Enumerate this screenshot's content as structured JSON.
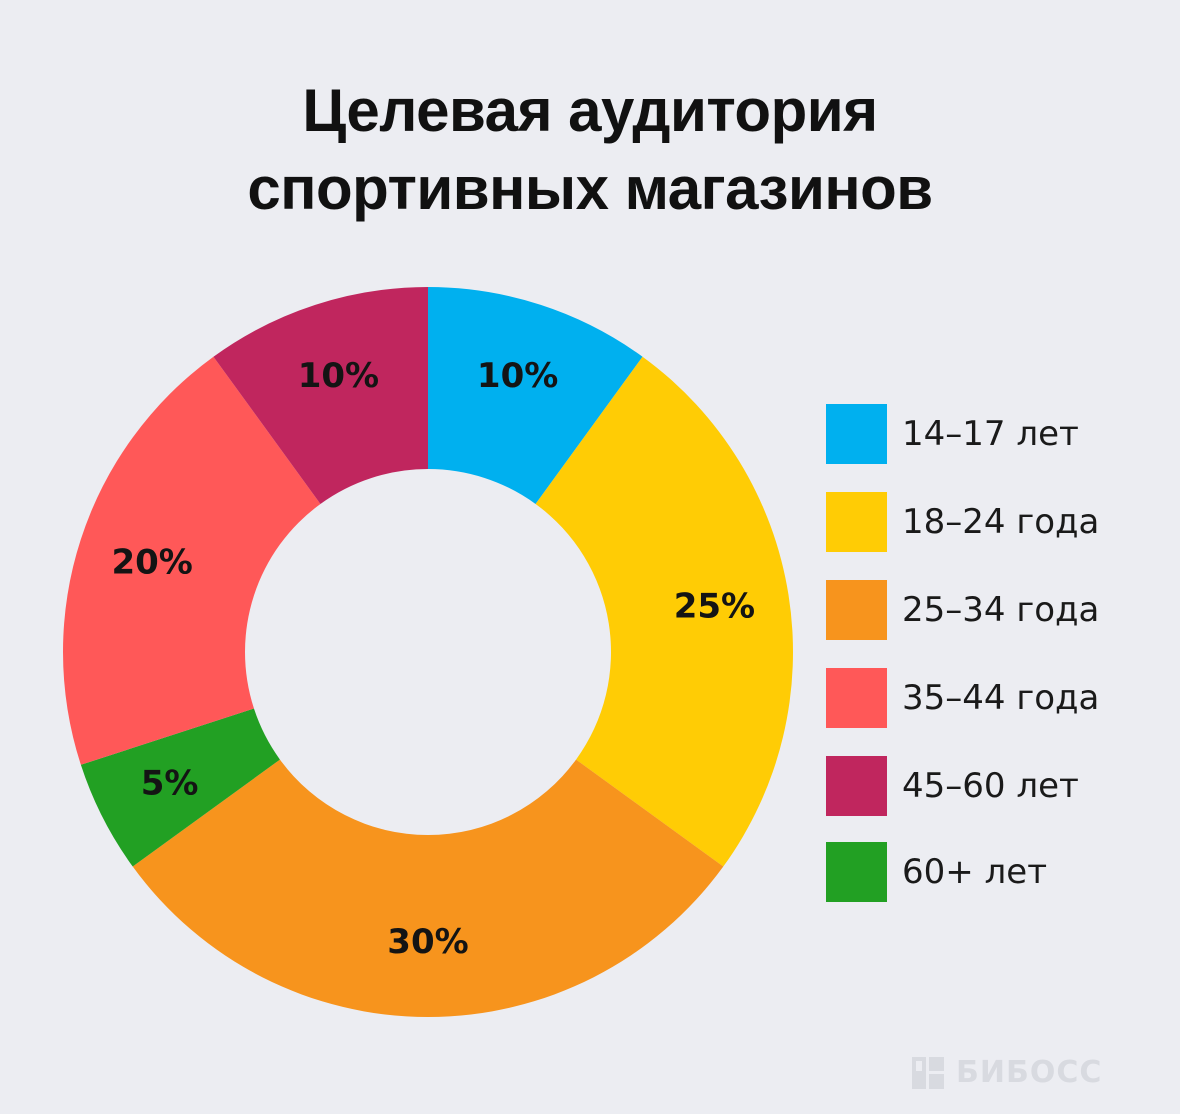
{
  "title_lines": [
    "Целевая аудитория",
    "спортивных магазинов"
  ],
  "chart_data": {
    "type": "pie",
    "variant": "donut",
    "title": "Целевая аудитория спортивных магазинов",
    "unit": "%",
    "slices": [
      {
        "name": "14–17 лет",
        "value": 10,
        "label": "10%",
        "color": "#00B0EF"
      },
      {
        "name": "18–24 года",
        "value": 25,
        "label": "25%",
        "color": "#FFCC05"
      },
      {
        "name": "25–34 года",
        "value": 30,
        "label": "30%",
        "color": "#F7941D"
      },
      {
        "name": "60+ лет",
        "value": 5,
        "label": "5%",
        "color": "#22A023"
      },
      {
        "name": "35–44 года",
        "value": 20,
        "label": "20%",
        "color": "#FF5858"
      },
      {
        "name": "45–60 лет",
        "value": 10,
        "label": "10%",
        "color": "#C0265E"
      }
    ],
    "legend": {
      "position": "right",
      "items": [
        {
          "label": "14–17 лет",
          "color": "#00B0EF"
        },
        {
          "label": "18–24 года",
          "color": "#FFCC05"
        },
        {
          "label": "25–34 года",
          "color": "#F7941D"
        },
        {
          "label": "35–44 года",
          "color": "#FF5858"
        },
        {
          "label": "45–60 лет",
          "color": "#C0265E"
        },
        {
          "label": "60+ лет",
          "color": "#22A023"
        }
      ]
    }
  },
  "watermark": {
    "text": "БИБОСС",
    "icon": "bibos-logo-icon"
  }
}
